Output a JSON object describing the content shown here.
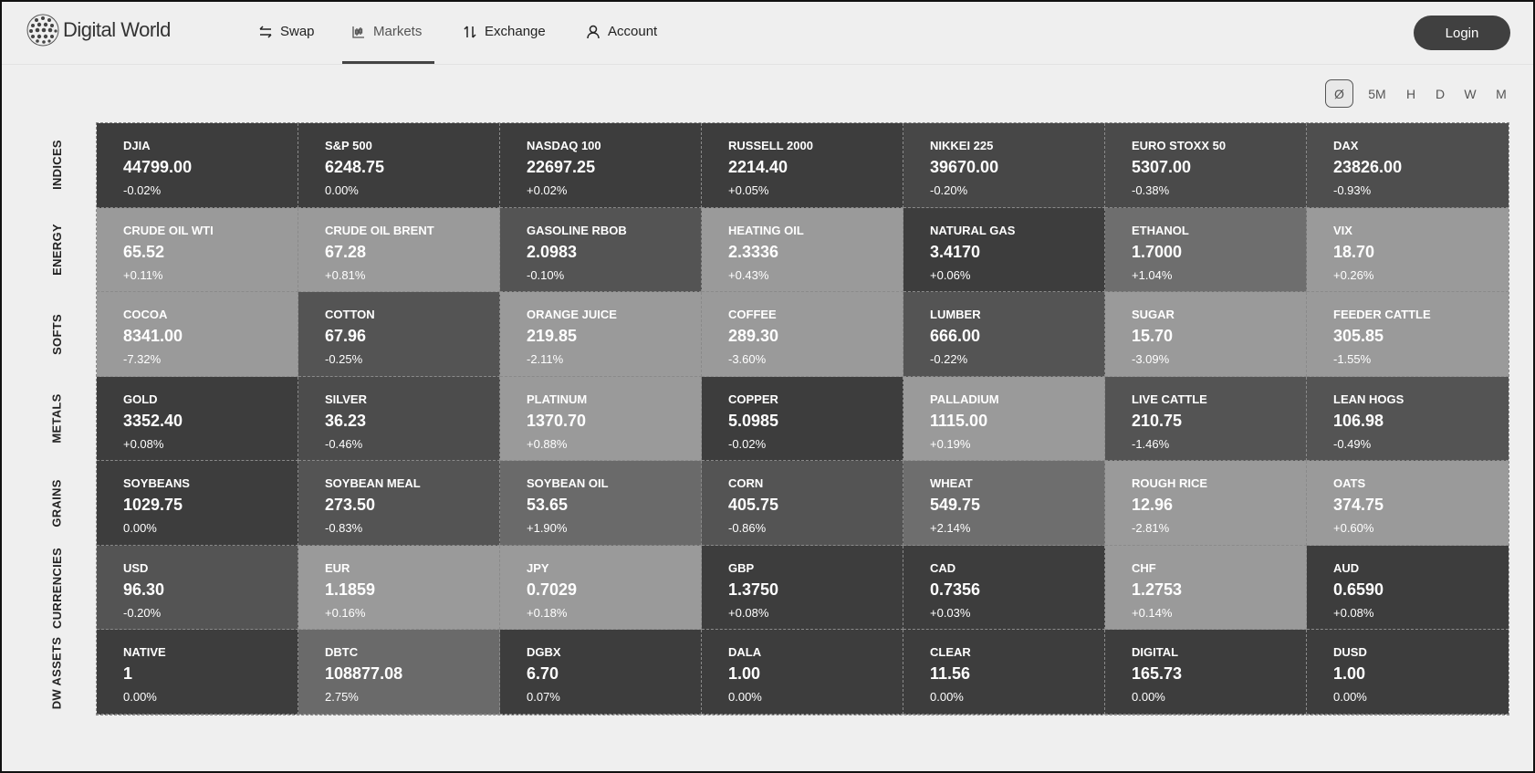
{
  "brand": {
    "name": "Digital World"
  },
  "nav": [
    {
      "label": "Swap",
      "icon": "swap-icon"
    },
    {
      "label": "Markets",
      "icon": "chart-icon",
      "active": true
    },
    {
      "label": "Exchange",
      "icon": "exchange-icon"
    },
    {
      "label": "Account",
      "icon": "user-icon"
    }
  ],
  "login_label": "Login",
  "timeframes": [
    "Ø",
    "5M",
    "H",
    "D",
    "W",
    "M"
  ],
  "selected_timeframe": "Ø",
  "rows": [
    {
      "label": "INDICES",
      "cells": [
        [
          "DJIA",
          "44799.00",
          "-0.02%",
          "#3d3d3d"
        ],
        [
          "S&P 500",
          "6248.75",
          "0.00%",
          "#3d3d3d"
        ],
        [
          "NASDAQ 100",
          "22697.25",
          "+0.02%",
          "#3d3d3d"
        ],
        [
          "RUSSELL 2000",
          "2214.40",
          "+0.05%",
          "#3d3d3d"
        ],
        [
          "NIKKEI 225",
          "39670.00",
          "-0.20%",
          "#474747"
        ],
        [
          "EURO STOXX 50",
          "5307.00",
          "-0.38%",
          "#4a4a4a"
        ],
        [
          "DAX",
          "23826.00",
          "-0.93%",
          "#4e4e4e"
        ]
      ]
    },
    {
      "label": "ENERGY",
      "cells": [
        [
          "CRUDE OIL WTI",
          "65.52",
          "+0.11%",
          "#9a9a9a"
        ],
        [
          "CRUDE OIL BRENT",
          "67.28",
          "+0.81%",
          "#9a9a9a"
        ],
        [
          "GASOLINE RBOB",
          "2.0983",
          "-0.10%",
          "#545454"
        ],
        [
          "HEATING OIL",
          "2.3336",
          "+0.43%",
          "#9a9a9a"
        ],
        [
          "NATURAL GAS",
          "3.4170",
          "+0.06%",
          "#3d3d3d"
        ],
        [
          "ETHANOL",
          "1.7000",
          "+1.04%",
          "#6e6e6e"
        ],
        [
          "VIX",
          "18.70",
          "+0.26%",
          "#9a9a9a"
        ]
      ]
    },
    {
      "label": "SOFTS",
      "cells": [
        [
          "COCOA",
          "8341.00",
          "-7.32%",
          "#9a9a9a"
        ],
        [
          "COTTON",
          "67.96",
          "-0.25%",
          "#545454"
        ],
        [
          "ORANGE JUICE",
          "219.85",
          "-2.11%",
          "#9a9a9a"
        ],
        [
          "COFFEE",
          "289.30",
          "-3.60%",
          "#9a9a9a"
        ],
        [
          "LUMBER",
          "666.00",
          "-0.22%",
          "#545454"
        ],
        [
          "SUGAR",
          "15.70",
          "-3.09%",
          "#9a9a9a"
        ],
        [
          "FEEDER CATTLE",
          "305.85",
          "-1.55%",
          "#9a9a9a"
        ]
      ]
    },
    {
      "label": "METALS",
      "cells": [
        [
          "GOLD",
          "3352.40",
          "+0.08%",
          "#3d3d3d"
        ],
        [
          "SILVER",
          "36.23",
          "-0.46%",
          "#4c4c4c"
        ],
        [
          "PLATINUM",
          "1370.70",
          "+0.88%",
          "#9a9a9a"
        ],
        [
          "COPPER",
          "5.0985",
          "-0.02%",
          "#3d3d3d"
        ],
        [
          "PALLADIUM",
          "1115.00",
          "+0.19%",
          "#9a9a9a"
        ],
        [
          "LIVE CATTLE",
          "210.75",
          "-1.46%",
          "#545454"
        ],
        [
          "LEAN HOGS",
          "106.98",
          "-0.49%",
          "#545454"
        ]
      ]
    },
    {
      "label": "GRAINS",
      "cells": [
        [
          "SOYBEANS",
          "1029.75",
          "0.00%",
          "#3d3d3d"
        ],
        [
          "SOYBEAN MEAL",
          "273.50",
          "-0.83%",
          "#545454"
        ],
        [
          "SOYBEAN OIL",
          "53.65",
          "+1.90%",
          "#6a6a6a"
        ],
        [
          "CORN",
          "405.75",
          "-0.86%",
          "#545454"
        ],
        [
          "WHEAT",
          "549.75",
          "+2.14%",
          "#6e6e6e"
        ],
        [
          "ROUGH RICE",
          "12.96",
          "-2.81%",
          "#9a9a9a"
        ],
        [
          "OATS",
          "374.75",
          "+0.60%",
          "#9a9a9a"
        ]
      ]
    },
    {
      "label": "CURRENCIES",
      "cells": [
        [
          "USD",
          "96.30",
          "-0.20%",
          "#545454"
        ],
        [
          "EUR",
          "1.1859",
          "+0.16%",
          "#9a9a9a"
        ],
        [
          "JPY",
          "0.7029",
          "+0.18%",
          "#9a9a9a"
        ],
        [
          "GBP",
          "1.3750",
          "+0.08%",
          "#3d3d3d"
        ],
        [
          "CAD",
          "0.7356",
          "+0.03%",
          "#3d3d3d"
        ],
        [
          "CHF",
          "1.2753",
          "+0.14%",
          "#9a9a9a"
        ],
        [
          "AUD",
          "0.6590",
          "+0.08%",
          "#3d3d3d"
        ]
      ]
    },
    {
      "label": "DW ASSETS",
      "cells": [
        [
          "NATIVE",
          "1",
          "0.00%",
          "#3d3d3d"
        ],
        [
          "DBTC",
          "108877.08",
          "2.75%",
          "#6a6a6a"
        ],
        [
          "DGBX",
          "6.70",
          "0.07%",
          "#3d3d3d"
        ],
        [
          "DALA",
          "1.00",
          "0.00%",
          "#3d3d3d"
        ],
        [
          "CLEAR",
          "11.56",
          "0.00%",
          "#3d3d3d"
        ],
        [
          "DIGITAL",
          "165.73",
          "0.00%",
          "#3d3d3d"
        ],
        [
          "DUSD",
          "1.00",
          "0.00%",
          "#3d3d3d"
        ]
      ]
    }
  ]
}
